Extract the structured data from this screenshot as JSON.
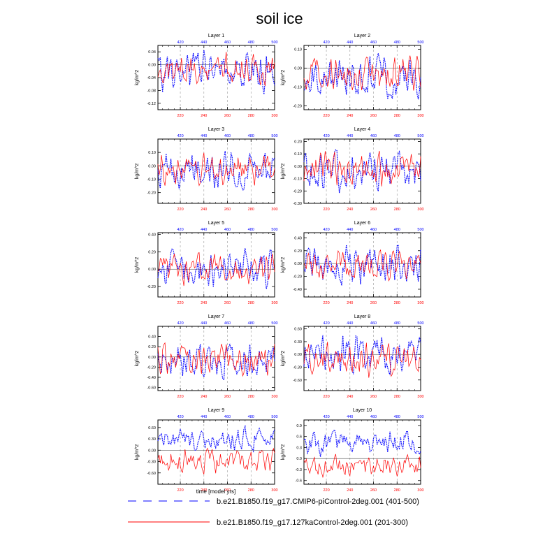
{
  "figure": {
    "title": "soil ice",
    "bottom_xlabel": "time [model yrs]",
    "legend": [
      {
        "label": "b.e21.B1850.f19_g17.CMIP6-piControl-2deg.001 (401-500)",
        "color": "#0000ff",
        "style": "dashed"
      },
      {
        "label": "b.e21.B1850.f19_g17.127kaControl-2deg.001 (201-300)",
        "color": "#ff0000",
        "style": "solid"
      }
    ]
  },
  "chart_data": [
    {
      "type": "line",
      "title": "Layer 1",
      "ylabel": "kg/m^2",
      "ylim": [
        -0.14,
        0.06
      ],
      "yticks": [
        0.04,
        0.0,
        -0.04,
        -0.08,
        -0.12
      ],
      "ytick_labels": [
        "0.04",
        "0.00",
        "-0.04",
        "-0.08",
        "-0.12"
      ],
      "x_bottom_ticks": [
        220,
        240,
        260,
        280,
        300
      ],
      "x_top_ticks": [
        420,
        440,
        460,
        480,
        500
      ],
      "x_bottom_range": [
        201,
        300
      ],
      "x_top_range": [
        401,
        500
      ],
      "series": [
        {
          "name": "b.e21.B1850.f19_g17.CMIP6-piControl-2deg.001 (401-500)",
          "color": "#0000ff",
          "amp": 0.045,
          "offset": -0.02,
          "seed": 11
        },
        {
          "name": "b.e21.B1850.f19_g17.127kaControl-2deg.001 (201-300)",
          "color": "#ff0000",
          "amp": 0.035,
          "offset": -0.01,
          "seed": 12
        }
      ]
    },
    {
      "type": "line",
      "title": "Layer 2",
      "ylabel": "kg/m^2",
      "ylim": [
        -0.22,
        0.12
      ],
      "yticks": [
        0.1,
        0.0,
        -0.1,
        -0.2
      ],
      "ytick_labels": [
        "0.10",
        "0.00",
        "-0.10",
        "-0.20"
      ],
      "x_bottom_ticks": [
        220,
        240,
        260,
        280,
        300
      ],
      "x_top_ticks": [
        420,
        440,
        460,
        480,
        500
      ],
      "x_bottom_range": [
        201,
        300
      ],
      "x_top_range": [
        401,
        500
      ],
      "series": [
        {
          "name": "b.e21.B1850.f19_g17.CMIP6-piControl-2deg.001 (401-500)",
          "color": "#0000ff",
          "amp": 0.08,
          "offset": -0.05,
          "seed": 21
        },
        {
          "name": "b.e21.B1850.f19_g17.127kaControl-2deg.001 (201-300)",
          "color": "#ff0000",
          "amp": 0.06,
          "offset": -0.03,
          "seed": 22
        }
      ]
    },
    {
      "type": "line",
      "title": "Layer 3",
      "ylabel": "kg/m^2",
      "ylim": [
        -0.28,
        0.2
      ],
      "yticks": [
        0.1,
        0.0,
        -0.1,
        -0.2
      ],
      "ytick_labels": [
        "0.10",
        "0.00",
        "-0.10",
        "-0.20"
      ],
      "x_bottom_ticks": [
        220,
        240,
        260,
        280,
        300
      ],
      "x_top_ticks": [
        420,
        440,
        460,
        480,
        500
      ],
      "x_bottom_range": [
        201,
        300
      ],
      "x_top_range": [
        401,
        500
      ],
      "series": [
        {
          "name": "b.e21.B1850.f19_g17.CMIP6-piControl-2deg.001 (401-500)",
          "color": "#0000ff",
          "amp": 0.1,
          "offset": -0.02,
          "seed": 31
        },
        {
          "name": "b.e21.B1850.f19_g17.127kaControl-2deg.001 (201-300)",
          "color": "#ff0000",
          "amp": 0.08,
          "offset": -0.02,
          "seed": 32
        }
      ]
    },
    {
      "type": "line",
      "title": "Layer 4",
      "ylabel": "kg/m^2",
      "ylim": [
        -0.3,
        0.22
      ],
      "yticks": [
        0.2,
        0.1,
        0.0,
        -0.1,
        -0.2,
        -0.3
      ],
      "ytick_labels": [
        "0.20",
        "0.10",
        "0.00",
        "-0.10",
        "-0.20",
        "-0.30"
      ],
      "x_bottom_ticks": [
        220,
        240,
        260,
        280,
        300
      ],
      "x_top_ticks": [
        420,
        440,
        460,
        480,
        500
      ],
      "x_bottom_range": [
        201,
        300
      ],
      "x_top_range": [
        401,
        500
      ],
      "series": [
        {
          "name": "b.e21.B1850.f19_g17.CMIP6-piControl-2deg.001 (401-500)",
          "color": "#0000ff",
          "amp": 0.11,
          "offset": -0.04,
          "seed": 41
        },
        {
          "name": "b.e21.B1850.f19_g17.127kaControl-2deg.001 (201-300)",
          "color": "#ff0000",
          "amp": 0.09,
          "offset": -0.02,
          "seed": 42
        }
      ]
    },
    {
      "type": "line",
      "title": "Layer 5",
      "ylabel": "kg/m^2",
      "ylim": [
        -0.32,
        0.42
      ],
      "yticks": [
        0.4,
        0.2,
        0.0,
        -0.2
      ],
      "ytick_labels": [
        "0.40",
        "0.20",
        "0.00",
        "-0.20"
      ],
      "x_bottom_ticks": [
        220,
        240,
        260,
        280,
        300
      ],
      "x_top_ticks": [
        420,
        440,
        460,
        480,
        500
      ],
      "x_bottom_range": [
        201,
        300
      ],
      "x_top_range": [
        401,
        500
      ],
      "series": [
        {
          "name": "b.e21.B1850.f19_g17.CMIP6-piControl-2deg.001 (401-500)",
          "color": "#0000ff",
          "amp": 0.15,
          "offset": 0.0,
          "seed": 51
        },
        {
          "name": "b.e21.B1850.f19_g17.127kaControl-2deg.001 (201-300)",
          "color": "#ff0000",
          "amp": 0.12,
          "offset": 0.0,
          "seed": 52
        }
      ]
    },
    {
      "type": "line",
      "title": "Layer 6",
      "ylabel": "kg/m^2",
      "ylim": [
        -0.52,
        0.48
      ],
      "yticks": [
        0.4,
        0.2,
        0.0,
        -0.2,
        -0.4
      ],
      "ytick_labels": [
        "0.40",
        "0.20",
        "0.00",
        "-0.20",
        "-0.40"
      ],
      "x_bottom_ticks": [
        220,
        240,
        260,
        280,
        300
      ],
      "x_top_ticks": [
        420,
        440,
        460,
        480,
        500
      ],
      "x_bottom_range": [
        201,
        300
      ],
      "x_top_range": [
        401,
        500
      ],
      "series": [
        {
          "name": "b.e21.B1850.f19_g17.CMIP6-piControl-2deg.001 (401-500)",
          "color": "#0000ff",
          "amp": 0.2,
          "offset": -0.03,
          "seed": 61
        },
        {
          "name": "b.e21.B1850.f19_g17.127kaControl-2deg.001 (201-300)",
          "color": "#ff0000",
          "amp": 0.15,
          "offset": -0.03,
          "seed": 62
        }
      ]
    },
    {
      "type": "line",
      "title": "Layer 7",
      "ylabel": "kg/m^2",
      "ylim": [
        -0.66,
        0.6
      ],
      "yticks": [
        0.4,
        0.2,
        0.0,
        -0.2,
        -0.4,
        -0.6
      ],
      "ytick_labels": [
        "0.40",
        "0.20",
        "0.00",
        "-0.20",
        "-0.40",
        "-0.60"
      ],
      "x_bottom_ticks": [
        220,
        240,
        260,
        280,
        300
      ],
      "x_top_ticks": [
        420,
        440,
        460,
        480,
        500
      ],
      "x_bottom_range": [
        201,
        300
      ],
      "x_top_range": [
        401,
        500
      ],
      "series": [
        {
          "name": "b.e21.B1850.f19_g17.CMIP6-piControl-2deg.001 (401-500)",
          "color": "#0000ff",
          "amp": 0.25,
          "offset": -0.05,
          "seed": 71
        },
        {
          "name": "b.e21.B1850.f19_g17.127kaControl-2deg.001 (201-300)",
          "color": "#ff0000",
          "amp": 0.22,
          "offset": -0.02,
          "seed": 72
        }
      ]
    },
    {
      "type": "line",
      "title": "Layer 8",
      "ylabel": "kg/m^2",
      "ylim": [
        -0.85,
        0.66
      ],
      "yticks": [
        0.6,
        0.3,
        0.0,
        -0.3,
        -0.6
      ],
      "ytick_labels": [
        "0.60",
        "0.30",
        "0.00",
        "-0.30",
        "-0.60"
      ],
      "x_bottom_ticks": [
        220,
        240,
        260,
        280,
        300
      ],
      "x_top_ticks": [
        420,
        440,
        460,
        480,
        500
      ],
      "x_bottom_range": [
        201,
        300
      ],
      "x_top_range": [
        401,
        500
      ],
      "series": [
        {
          "name": "b.e21.B1850.f19_g17.CMIP6-piControl-2deg.001 (401-500)",
          "color": "#0000ff",
          "amp": 0.3,
          "offset": 0.0,
          "seed": 81
        },
        {
          "name": "b.e21.B1850.f19_g17.127kaControl-2deg.001 (201-300)",
          "color": "#ff0000",
          "amp": 0.28,
          "offset": -0.1,
          "seed": 82
        }
      ]
    },
    {
      "type": "line",
      "title": "Layer 9",
      "ylabel": "kg/m^2",
      "ylim": [
        -0.9,
        0.8
      ],
      "yticks": [
        0.6,
        0.3,
        0.0,
        -0.3,
        -0.6
      ],
      "ytick_labels": [
        "0.60",
        "0.30",
        "0.00",
        "-0.30",
        "-0.60"
      ],
      "x_bottom_ticks": [
        220,
        240,
        260,
        280,
        300
      ],
      "x_top_ticks": [
        420,
        440,
        460,
        480,
        500
      ],
      "x_bottom_range": [
        201,
        300
      ],
      "x_top_range": [
        401,
        500
      ],
      "series": [
        {
          "name": "b.e21.B1850.f19_g17.CMIP6-piControl-2deg.001 (401-500)",
          "color": "#0000ff",
          "amp": 0.22,
          "offset": 0.28,
          "seed": 91
        },
        {
          "name": "b.e21.B1850.f19_g17.127kaControl-2deg.001 (201-300)",
          "color": "#ff0000",
          "amp": 0.22,
          "offset": -0.3,
          "seed": 92
        }
      ]
    },
    {
      "type": "line",
      "title": "Layer 10",
      "ylabel": "kg/m^2",
      "ylim": [
        -0.7,
        1.05
      ],
      "yticks": [
        0.9,
        0.6,
        0.3,
        0.0,
        -0.3,
        -0.6
      ],
      "ytick_labels": [
        "0.9",
        "0.6",
        "0.3",
        "0.0",
        "-0.3",
        "-0.6"
      ],
      "x_bottom_ticks": [
        220,
        240,
        260,
        280,
        300
      ],
      "x_top_ticks": [
        420,
        440,
        460,
        480,
        500
      ],
      "x_bottom_range": [
        201,
        300
      ],
      "x_top_range": [
        401,
        500
      ],
      "series": [
        {
          "name": "b.e21.B1850.f19_g17.CMIP6-piControl-2deg.001 (401-500)",
          "color": "#0000ff",
          "amp": 0.25,
          "offset": 0.45,
          "seed": 101
        },
        {
          "name": "b.e21.B1850.f19_g17.127kaControl-2deg.001 (201-300)",
          "color": "#ff0000",
          "amp": 0.2,
          "offset": -0.2,
          "seed": 102
        }
      ]
    }
  ]
}
